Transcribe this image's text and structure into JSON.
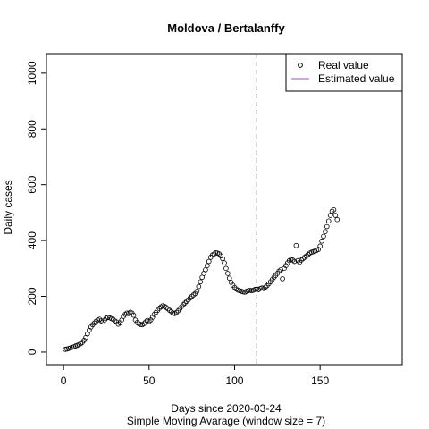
{
  "chart_data": {
    "type": "scatter",
    "title": "Moldova / Bertalanffy",
    "xlabel": "Days since 2020-03-24",
    "subtitle": "Simple Moving Avarage (window size = 7)",
    "ylabel": "Daily cases",
    "xlim": [
      -10,
      198
    ],
    "ylim": [
      -45,
      1070
    ],
    "xticks": [
      0,
      50,
      100,
      150
    ],
    "yticks": [
      0,
      200,
      400,
      600,
      800,
      1000
    ],
    "vline": 113,
    "legend": [
      {
        "name": "Real value",
        "color": "#000000"
      },
      {
        "name": "Estimated value",
        "color": "#9b59b6"
      }
    ],
    "legend_position": "top-right",
    "series": [
      {
        "name": "Real value",
        "color": "#000000",
        "x": [
          1,
          2,
          3,
          4,
          5,
          6,
          7,
          8,
          9,
          10,
          11,
          12,
          13,
          14,
          15,
          16,
          17,
          18,
          19,
          20,
          21,
          22,
          23,
          24,
          25,
          26,
          27,
          28,
          29,
          30,
          31,
          32,
          33,
          34,
          35,
          36,
          37,
          38,
          39,
          40,
          41,
          42,
          43,
          44,
          45,
          46,
          47,
          48,
          49,
          50,
          51,
          52,
          53,
          54,
          55,
          56,
          57,
          58,
          59,
          60,
          61,
          62,
          63,
          64,
          65,
          66,
          67,
          68,
          69,
          70,
          71,
          72,
          73,
          74,
          75,
          76,
          77,
          78,
          79,
          80,
          81,
          82,
          83,
          84,
          85,
          86,
          87,
          88,
          89,
          90,
          91,
          92,
          93,
          94,
          95,
          96,
          97,
          98,
          99,
          100,
          101,
          102,
          103,
          104,
          105,
          106,
          107,
          108,
          109,
          110,
          111,
          112,
          113,
          114,
          115,
          116,
          117,
          118,
          119,
          120,
          121,
          122,
          123,
          124,
          125,
          126,
          127,
          128,
          129,
          130,
          131,
          132,
          133,
          134,
          135,
          136,
          137,
          138,
          139,
          140,
          141,
          142,
          143,
          144,
          145,
          146,
          147,
          148,
          149,
          150,
          151,
          152,
          153,
          154,
          155,
          156,
          157,
          158,
          159,
          160
        ],
        "values": [
          10,
          11,
          13,
          15,
          17,
          19,
          22,
          24,
          27,
          30,
          35,
          42,
          52,
          65,
          78,
          90,
          98,
          104,
          110,
          115,
          118,
          112,
          108,
          115,
          122,
          125,
          123,
          120,
          117,
          112,
          108,
          100,
          105,
          115,
          128,
          135,
          140,
          138,
          143,
          140,
          132,
          115,
          106,
          102,
          99,
          98,
          102,
          108,
          114,
          110,
          115,
          125,
          135,
          142,
          150,
          157,
          162,
          166,
          164,
          160,
          155,
          150,
          145,
          140,
          138,
          142,
          148,
          155,
          163,
          170,
          176,
          182,
          188,
          194,
          200,
          205,
          210,
          218,
          235,
          252,
          268,
          282,
          295,
          310,
          325,
          340,
          348,
          352,
          356,
          355,
          352,
          345,
          335,
          320,
          300,
          282,
          265,
          250,
          240,
          232,
          226,
          222,
          220,
          218,
          216,
          215,
          218,
          220,
          222,
          220,
          222,
          225,
          226,
          224,
          228,
          230,
          228,
          233,
          238,
          245,
          252,
          260,
          268,
          275,
          282,
          290,
          295,
          263,
          300,
          310,
          320,
          328,
          332,
          330,
          325,
          382,
          328,
          322,
          330,
          335,
          340,
          345,
          350,
          355,
          358,
          360,
          362,
          365,
          368,
          380,
          398,
          415,
          432,
          450,
          470,
          490,
          505,
          510,
          490,
          475
        ]
      }
    ]
  }
}
